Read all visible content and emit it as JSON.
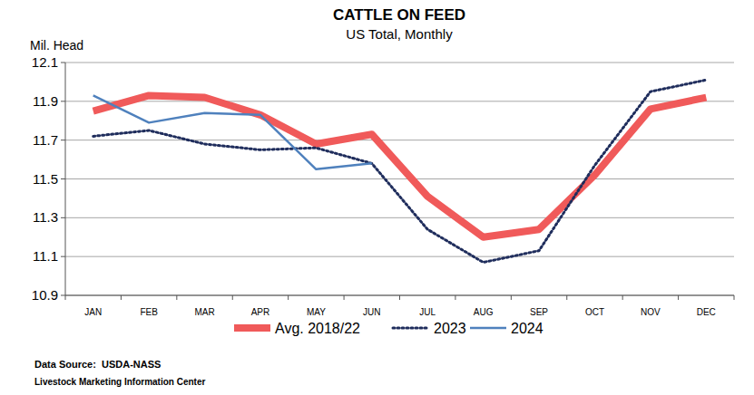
{
  "chart_data": {
    "type": "line",
    "title": "CATTLE ON FEED",
    "subtitle": "US Total, Monthly",
    "y_label": "Mil. Head",
    "categories": [
      "JAN",
      "FEB",
      "MAR",
      "APR",
      "MAY",
      "JUN",
      "JUL",
      "AUG",
      "SEP",
      "OCT",
      "NOV",
      "DEC"
    ],
    "series": [
      {
        "name": "Avg. 2018/22",
        "color": "#f05a5a",
        "line_style": "solid",
        "values": [
          11.85,
          11.93,
          11.92,
          11.83,
          11.68,
          11.73,
          11.41,
          11.2,
          11.24,
          11.52,
          11.86,
          11.92
        ]
      },
      {
        "name": "2023",
        "color": "#1f2d5c",
        "line_style": "dotted",
        "values": [
          11.72,
          11.75,
          11.68,
          11.65,
          11.66,
          11.58,
          11.24,
          11.07,
          11.13,
          11.57,
          11.95,
          12.01
        ]
      },
      {
        "name": "2024",
        "color": "#4f81bd",
        "line_style": "solid",
        "values": [
          11.93,
          11.79,
          11.84,
          11.83,
          11.55,
          11.58,
          null,
          null,
          null,
          null,
          null,
          null
        ]
      }
    ],
    "ylim": [
      10.9,
      12.1
    ],
    "yticks": [
      {
        "value": 10.9,
        "label": "10.9"
      },
      {
        "value": 11.1,
        "label": "11.1"
      },
      {
        "value": 11.3,
        "label": "11.3"
      },
      {
        "value": 11.5,
        "label": "11.5"
      },
      {
        "value": 11.7,
        "label": "11.7"
      },
      {
        "value": 11.9,
        "label": "11.9"
      },
      {
        "value": 12.1,
        "label": "12.1"
      }
    ],
    "grid": true,
    "legend": "bottom",
    "source": "Data Source:  USDA-NASS",
    "credit": "Livestock Marketing Information Center"
  }
}
